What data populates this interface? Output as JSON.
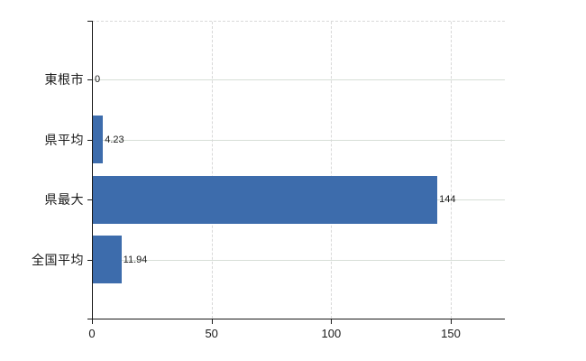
{
  "chart_data": {
    "type": "bar",
    "orientation": "horizontal",
    "title": "",
    "xlabel": "",
    "ylabel": "",
    "categories": [
      "東根市",
      "県平均",
      "県最大",
      "全国平均"
    ],
    "values": [
      0,
      4.23,
      144,
      11.94
    ],
    "value_labels": [
      "0",
      "4.23",
      "144",
      "11.94"
    ],
    "xticks": [
      0,
      50,
      100,
      150
    ],
    "xtick_labels": [
      "0",
      "50",
      "100",
      "150"
    ],
    "xlim": [
      0,
      172.6
    ],
    "grid": true,
    "legend": "none",
    "colors": {
      "bar": "#3d6cac",
      "axis": "#1a1a1a",
      "text": "#1a1a1a",
      "h_gridline": "#d7ded7",
      "v_gridline": "#d8d8d8",
      "background": "#ffffff"
    }
  }
}
